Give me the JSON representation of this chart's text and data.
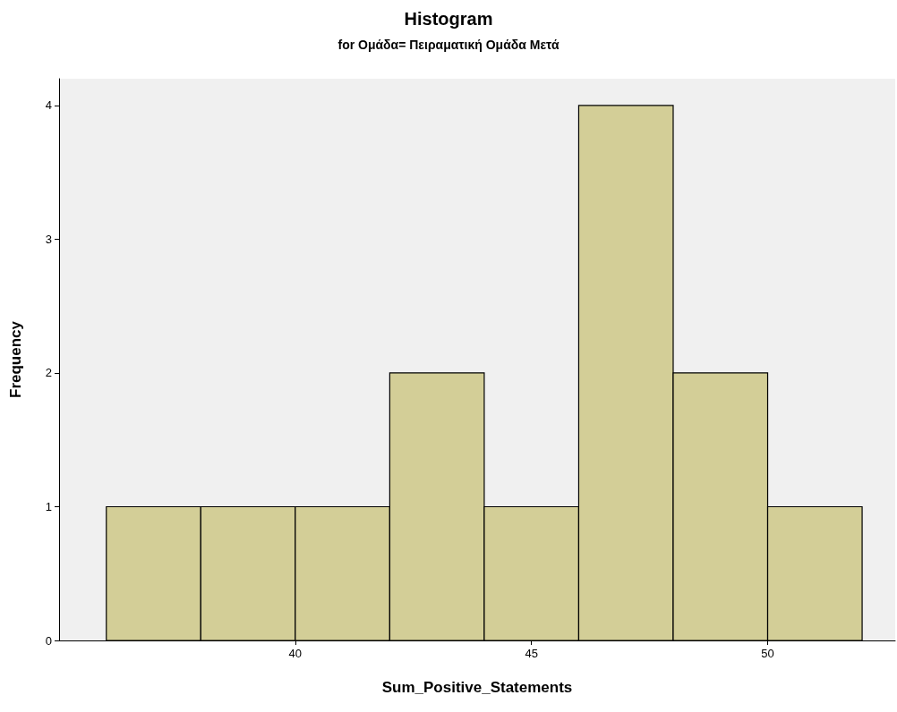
{
  "chart_data": {
    "type": "histogram",
    "title": "Histogram",
    "subtitle": "for Ομάδα= Πειραματική Ομάδα Μετά",
    "xlabel": "Sum_Positive_Statements",
    "ylabel": "Frequency",
    "bins": [
      36,
      38,
      40,
      42,
      44,
      46,
      48,
      50,
      52
    ],
    "values": [
      1,
      1,
      1,
      2,
      1,
      4,
      2,
      1
    ],
    "color": "#d3ce97",
    "xlim": [
      35,
      52.7
    ],
    "xticks": [
      40,
      45,
      50
    ],
    "ylim": [
      0,
      4.2
    ],
    "yticks": [
      0,
      1,
      2,
      3,
      4
    ],
    "grid": false,
    "legend": false
  }
}
